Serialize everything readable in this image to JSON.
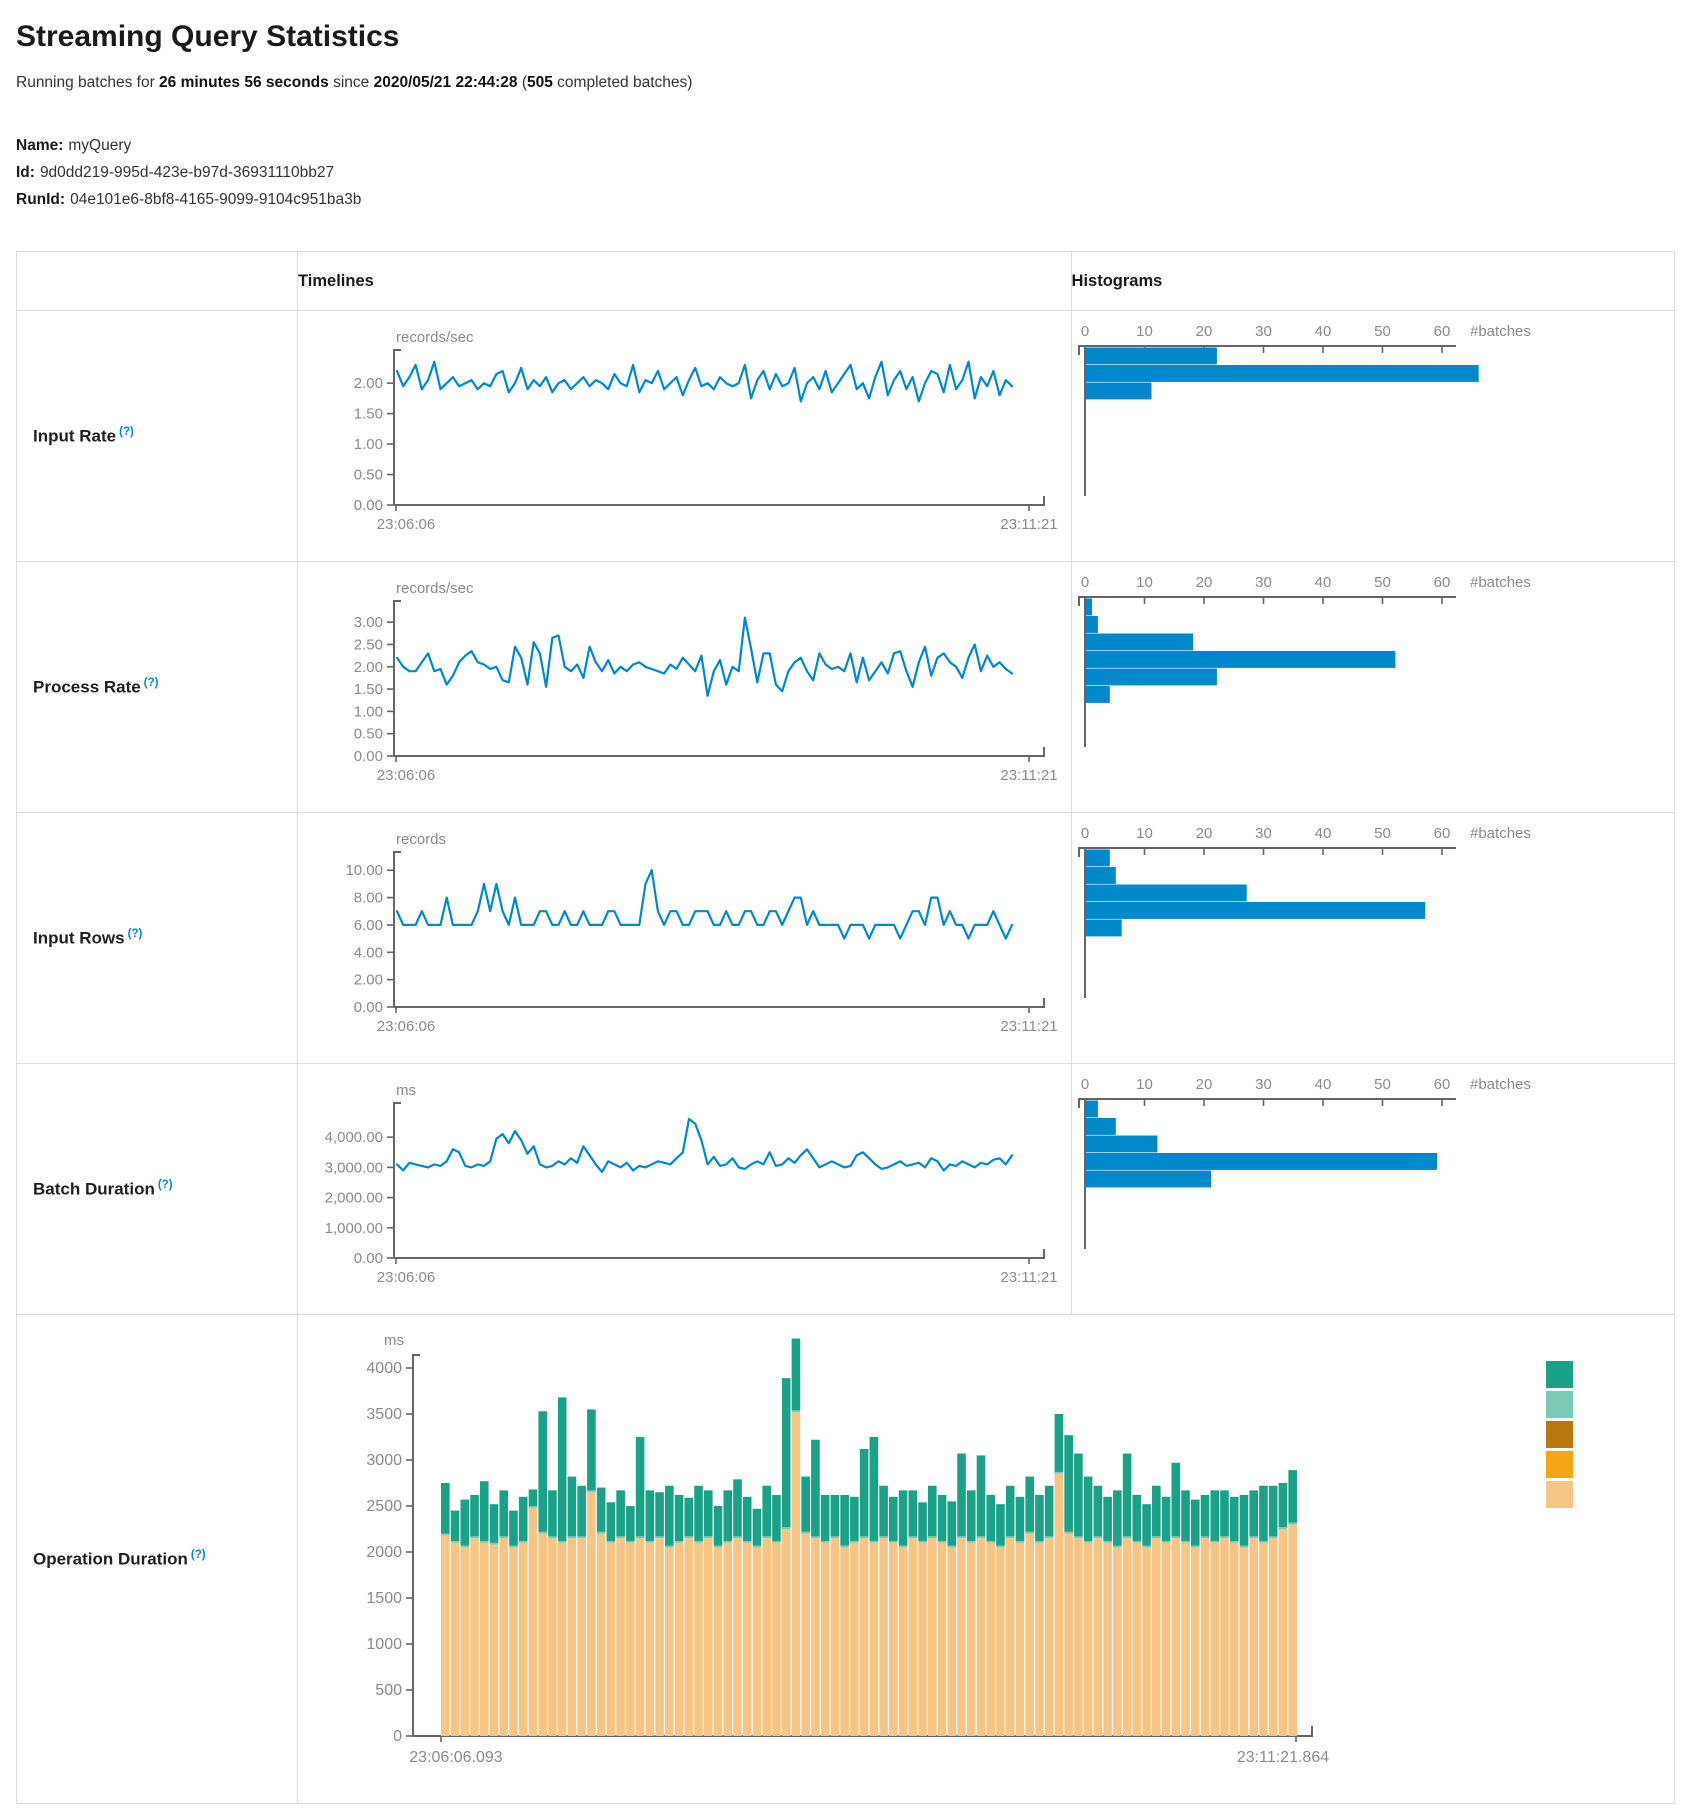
{
  "page": {
    "title": "Streaming Query Statistics"
  },
  "summary": {
    "t1": "Running batches for ",
    "t2": "26 minutes 56 seconds",
    "t3": " since ",
    "t4": "2020/05/21 22:44:28",
    "t5": " (",
    "t6": "505",
    "t7": " completed batches)"
  },
  "query_info": {
    "name_label": "Name:",
    "name": "myQuery",
    "id_label": "Id:",
    "id": "9d0dd219-995d-423e-b97d-36931110bb27",
    "runid_label": "RunId:",
    "runid": "04e101e6-8bf8-4165-9099-9104c951ba3b"
  },
  "table": {
    "col_timelines": "Timelines",
    "col_histograms": "Histograms",
    "rows": [
      {
        "label": "Input Rate",
        "help": "(?)"
      },
      {
        "label": "Process Rate",
        "help": "(?)"
      },
      {
        "label": "Input Rows",
        "help": "(?)"
      },
      {
        "label": "Batch Duration",
        "help": "(?)"
      },
      {
        "label": "Operation Duration",
        "help": "(?)"
      }
    ]
  },
  "colors": {
    "accent_blue": "#0088cc",
    "axis_line": "#666666",
    "axis_text": "#8a8a8a",
    "table_border": "#dcdcdc",
    "legend": [
      "#1ba187",
      "#7cc9b6",
      "#b8770f",
      "#f5a414",
      "#f6c585"
    ]
  },
  "chart_data": [
    {
      "id": "input-rate",
      "type": "line",
      "unit": "records/sec",
      "x_start": "23:06:06",
      "x_end": "23:11:21",
      "ytop": 2.38,
      "yticks": [
        {
          "label": "2.00",
          "v": 2.0
        },
        {
          "label": "1.50",
          "v": 1.5
        },
        {
          "label": "1.00",
          "v": 1.0
        },
        {
          "label": "0.50",
          "v": 0.5
        },
        {
          "label": "0.00",
          "v": 0.0
        }
      ],
      "values": [
        2.2,
        1.95,
        2.1,
        2.3,
        1.9,
        2.05,
        2.35,
        1.9,
        2.0,
        2.1,
        1.95,
        2.0,
        2.05,
        1.9,
        2.0,
        1.95,
        2.15,
        2.2,
        1.85,
        2.0,
        2.25,
        1.9,
        2.05,
        1.95,
        2.1,
        1.85,
        2.0,
        2.05,
        1.9,
        2.0,
        2.1,
        1.95,
        2.05,
        2.0,
        1.9,
        2.15,
        2.0,
        1.95,
        2.3,
        1.85,
        2.05,
        2.0,
        2.2,
        1.9,
        2.0,
        2.1,
        1.8,
        2.05,
        2.25,
        1.95,
        2.0,
        1.9,
        2.1,
        2.0,
        1.95,
        2.0,
        2.3,
        1.75,
        2.05,
        2.2,
        1.9,
        2.15,
        1.95,
        2.0,
        2.25,
        1.7,
        2.0,
        2.1,
        1.9,
        2.2,
        1.85,
        2.0,
        2.15,
        2.3,
        1.9,
        2.0,
        1.75,
        2.1,
        2.35,
        1.8,
        2.05,
        2.2,
        1.9,
        2.1,
        1.7,
        2.0,
        2.2,
        2.15,
        1.85,
        2.3,
        1.9,
        2.05,
        2.35,
        1.75,
        2.1,
        1.95,
        2.2,
        1.8,
        2.05,
        1.95
      ],
      "histogram": {
        "unit": "#batches",
        "tick_labels": [
          "0",
          "10",
          "20",
          "30",
          "40",
          "50",
          "60"
        ],
        "tick_values": [
          0,
          10,
          20,
          30,
          40,
          50,
          60
        ],
        "bars": [
          22,
          66,
          11
        ]
      }
    },
    {
      "id": "process-rate",
      "type": "line",
      "unit": "records/sec",
      "x_start": "23:06:06",
      "x_end": "23:11:21",
      "ytop": 3.25,
      "yticks": [
        {
          "label": "3.00",
          "v": 3.0
        },
        {
          "label": "2.50",
          "v": 2.5
        },
        {
          "label": "2.00",
          "v": 2.0
        },
        {
          "label": "1.50",
          "v": 1.5
        },
        {
          "label": "1.00",
          "v": 1.0
        },
        {
          "label": "0.50",
          "v": 0.5
        },
        {
          "label": "0.00",
          "v": 0.0
        }
      ],
      "values": [
        2.2,
        2.0,
        1.9,
        1.9,
        2.1,
        2.3,
        1.9,
        1.95,
        1.6,
        1.8,
        2.1,
        2.25,
        2.35,
        2.1,
        2.05,
        1.95,
        2.0,
        1.7,
        1.65,
        2.45,
        2.2,
        1.6,
        2.55,
        2.3,
        1.55,
        2.65,
        2.7,
        2.0,
        1.9,
        2.05,
        1.75,
        2.45,
        2.1,
        1.9,
        2.15,
        1.85,
        2.0,
        1.9,
        2.05,
        2.1,
        2.0,
        1.95,
        1.9,
        1.85,
        2.05,
        1.95,
        2.2,
        2.05,
        1.9,
        2.25,
        1.35,
        1.9,
        2.15,
        1.6,
        2.0,
        1.9,
        3.1,
        2.4,
        1.65,
        2.3,
        2.3,
        1.6,
        1.45,
        1.9,
        2.1,
        2.2,
        1.9,
        1.7,
        2.3,
        2.05,
        1.95,
        2.0,
        1.9,
        2.3,
        1.65,
        2.2,
        1.7,
        1.9,
        2.1,
        1.85,
        2.3,
        2.35,
        1.9,
        1.55,
        2.1,
        2.45,
        1.8,
        2.2,
        2.3,
        2.1,
        2.0,
        1.75,
        2.2,
        2.5,
        1.9,
        2.25,
        2.0,
        2.1,
        1.95,
        1.85
      ],
      "histogram": {
        "unit": "#batches",
        "tick_labels": [
          "0",
          "10",
          "20",
          "30",
          "40",
          "50",
          "60"
        ],
        "tick_values": [
          0,
          10,
          20,
          30,
          40,
          50,
          60
        ],
        "bars": [
          1,
          2,
          18,
          52,
          22,
          4
        ]
      }
    },
    {
      "id": "input-rows",
      "type": "line",
      "unit": "records",
      "x_start": "23:06:06",
      "x_end": "23:11:21",
      "ytop": 10.6,
      "yticks": [
        {
          "label": "10.00",
          "v": 10
        },
        {
          "label": "8.00",
          "v": 8
        },
        {
          "label": "6.00",
          "v": 6
        },
        {
          "label": "4.00",
          "v": 4
        },
        {
          "label": "2.00",
          "v": 2
        },
        {
          "label": "0.00",
          "v": 0
        }
      ],
      "values": [
        7,
        6,
        6,
        6,
        7,
        6,
        6,
        6,
        8,
        6,
        6,
        6,
        6,
        7,
        9,
        7,
        9,
        7,
        6,
        8,
        6,
        6,
        6,
        7,
        7,
        6,
        6,
        7,
        6,
        6,
        7,
        6,
        6,
        6,
        7,
        7,
        6,
        6,
        6,
        6,
        9,
        10,
        7,
        6,
        7,
        7,
        6,
        6,
        7,
        7,
        7,
        6,
        6,
        7,
        6,
        6,
        7,
        7,
        6,
        6,
        7,
        7,
        6,
        7,
        8,
        8,
        6,
        7,
        6,
        6,
        6,
        6,
        5,
        6,
        6,
        6,
        5,
        6,
        6,
        6,
        6,
        5,
        6,
        7,
        7,
        6,
        8,
        8,
        6,
        7,
        6,
        6,
        5,
        6,
        6,
        6,
        7,
        6,
        5,
        6
      ],
      "histogram": {
        "unit": "#batches",
        "tick_labels": [
          "0",
          "10",
          "20",
          "30",
          "40",
          "50",
          "60"
        ],
        "tick_values": [
          0,
          10,
          20,
          30,
          40,
          50,
          60
        ],
        "bars": [
          4,
          5,
          27,
          57,
          6
        ]
      }
    },
    {
      "id": "batch-duration",
      "type": "line",
      "unit": "ms",
      "x_start": "23:06:06",
      "x_end": "23:11:21",
      "ytop": 4800,
      "yticks": [
        {
          "label": "4,000.00",
          "v": 4000
        },
        {
          "label": "3,000.00",
          "v": 3000
        },
        {
          "label": "2,000.00",
          "v": 2000
        },
        {
          "label": "1,000.00",
          "v": 1000
        },
        {
          "label": "0.00",
          "v": 0
        }
      ],
      "values": [
        3100,
        2900,
        3150,
        3100,
        3050,
        3000,
        3100,
        3050,
        3200,
        3600,
        3500,
        3050,
        3000,
        3100,
        3050,
        3200,
        3950,
        4100,
        3800,
        4200,
        3900,
        3450,
        3700,
        3100,
        3000,
        3050,
        3200,
        3100,
        3300,
        3150,
        3700,
        3400,
        3100,
        2850,
        3200,
        3100,
        3000,
        3150,
        2900,
        3050,
        3000,
        3100,
        3200,
        3150,
        3100,
        3300,
        3500,
        4600,
        4450,
        3900,
        3100,
        3350,
        3050,
        3100,
        3300,
        3000,
        2950,
        3100,
        3200,
        3100,
        3500,
        3050,
        3100,
        3300,
        3150,
        3400,
        3600,
        3300,
        3000,
        3100,
        3200,
        3100,
        3000,
        3050,
        3400,
        3500,
        3300,
        3100,
        2950,
        3000,
        3100,
        3200,
        3050,
        3100,
        3150,
        3000,
        3300,
        3200,
        2900,
        3100,
        3050,
        3200,
        3100,
        3000,
        3150,
        3100,
        3250,
        3300,
        3100,
        3400
      ],
      "histogram": {
        "unit": "#batches",
        "tick_labels": [
          "0",
          "10",
          "20",
          "30",
          "40",
          "50",
          "60"
        ],
        "tick_values": [
          0,
          10,
          20,
          30,
          40,
          50,
          60
        ],
        "bars": [
          2,
          5,
          12,
          59,
          21
        ]
      }
    },
    {
      "id": "operation-duration",
      "type": "stacked-bar",
      "unit": "ms",
      "x_start": "23:06:06.093",
      "x_end": "23:11:21.864",
      "yticks": [
        {
          "label": "4000",
          "v": 4000
        },
        {
          "label": "3500",
          "v": 3500
        },
        {
          "label": "3000",
          "v": 3000
        },
        {
          "label": "2500",
          "v": 2500
        },
        {
          "label": "2000",
          "v": 2000
        },
        {
          "label": "1500",
          "v": 1500
        },
        {
          "label": "1000",
          "v": 1000
        },
        {
          "label": "500",
          "v": 500
        },
        {
          "label": "0",
          "v": 0
        }
      ],
      "series": [
        {
          "color": "#1ba187",
          "values": [
            550,
            330,
            500,
            450,
            650,
            420,
            500,
            380,
            480,
            180,
            1310,
            500,
            1560,
            650,
            550,
            880,
            480,
            420,
            500,
            380,
            1080,
            550,
            480,
            650,
            500,
            420,
            600,
            500,
            430,
            550,
            620,
            480,
            400,
            550,
            500,
            1620,
            780,
            600,
            1050,
            500,
            450,
            550,
            480,
            950,
            1130,
            550,
            480,
            600,
            500,
            420,
            550,
            500,
            480,
            900,
            550,
            880,
            500,
            450,
            550,
            480,
            600,
            500,
            550,
            630,
            1050,
            900,
            700,
            550,
            480,
            600,
            900,
            500,
            450,
            550,
            480,
            800,
            550,
            500,
            450,
            550,
            500,
            480,
            550,
            500,
            600,
            550,
            480,
            570
          ]
        },
        {
          "color": "#7cc9b6",
          "const": 20
        },
        {
          "color": "#b8770f",
          "const": 0
        },
        {
          "color": "#f5a414",
          "const": 0
        },
        {
          "color": "#f6c585",
          "values": [
            2180,
            2100,
            2050,
            2150,
            2100,
            2080,
            2150,
            2050,
            2100,
            2480,
            2200,
            2150,
            2100,
            2150,
            2150,
            2650,
            2200,
            2100,
            2150,
            2100,
            2150,
            2100,
            2150,
            2050,
            2100,
            2150,
            2100,
            2150,
            2050,
            2100,
            2150,
            2100,
            2050,
            2150,
            2100,
            2250,
            3520,
            2200,
            2150,
            2100,
            2150,
            2050,
            2100,
            2150,
            2100,
            2150,
            2100,
            2050,
            2150,
            2100,
            2150,
            2100,
            2050,
            2150,
            2100,
            2150,
            2100,
            2050,
            2150,
            2100,
            2200,
            2100,
            2150,
            2850,
            2200,
            2150,
            2100,
            2150,
            2100,
            2050,
            2150,
            2100,
            2050,
            2150,
            2100,
            2150,
            2100,
            2050,
            2150,
            2100,
            2150,
            2100,
            2050,
            2150,
            2100,
            2150,
            2250,
            2300
          ]
        }
      ]
    }
  ]
}
